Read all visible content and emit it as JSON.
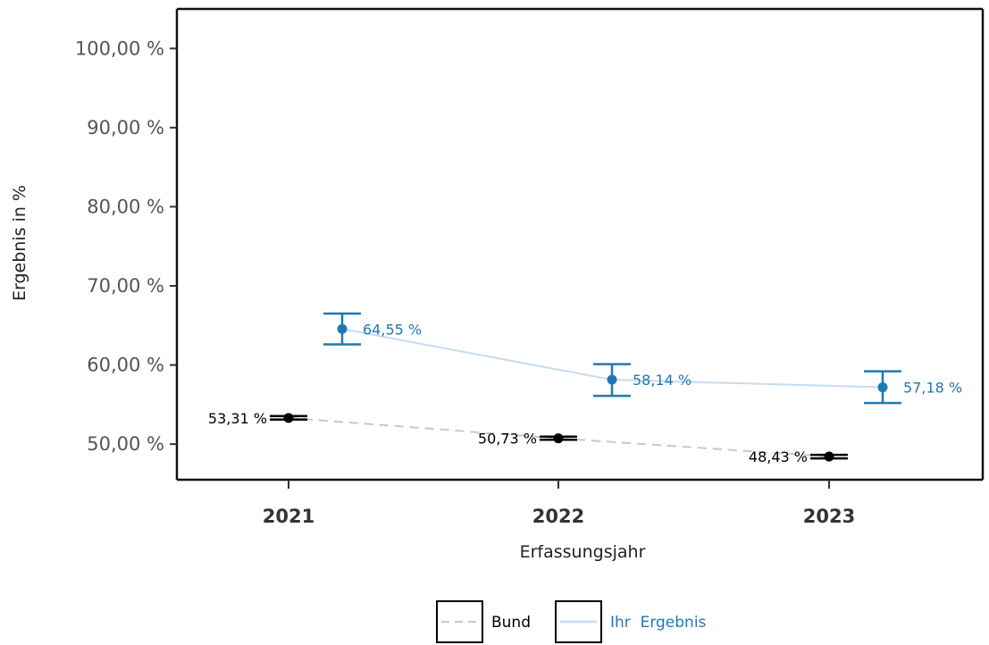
{
  "chart_data": {
    "type": "line",
    "xlabel": "Erfassungsjahr",
    "ylabel": "Ergebnis in %",
    "categories": [
      "2021",
      "2022",
      "2023"
    ],
    "ylim": [
      45.5,
      105
    ],
    "yticks": [
      50,
      60,
      70,
      80,
      90,
      100
    ],
    "ytick_labels": [
      "50,00 %",
      "60,00 %",
      "70,00 %",
      "80,00 %",
      "90,00 %",
      "100,00 %"
    ],
    "grid": false,
    "legend_position": "bottom",
    "series": [
      {
        "name": "Bund",
        "values": [
          53.31,
          50.73,
          48.43
        ],
        "lower": [
          53.1,
          50.55,
          48.2
        ],
        "upper": [
          53.55,
          50.95,
          48.65
        ],
        "labels": [
          "53,31 %",
          "50,73 %",
          "48,43 %"
        ],
        "color": "#000000",
        "line_color": "#c8c8c8",
        "line_style": "dashed"
      },
      {
        "name": "Ihr  Ergebnis",
        "values": [
          64.55,
          58.14,
          57.18
        ],
        "lower": [
          62.6,
          56.1,
          55.2
        ],
        "upper": [
          66.5,
          60.1,
          59.2
        ],
        "labels": [
          "64,55 %",
          "58,14 %",
          "57,18 %"
        ],
        "color": "#1f78b4",
        "line_color": "#c6dbef",
        "line_style": "solid"
      }
    ]
  }
}
